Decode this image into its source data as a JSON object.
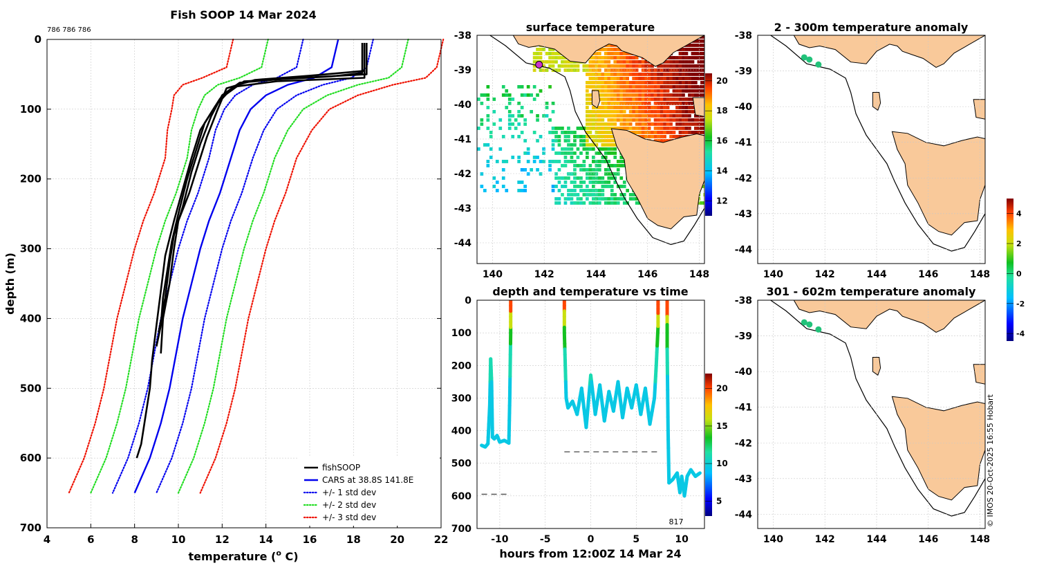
{
  "colors": {
    "land": "#f9c99a",
    "black": "#000000",
    "cars": "#0000ee",
    "std1": "#0000ee",
    "std2": "#22dd22",
    "std3": "#ee1100",
    "anom_dot": "#22c27a",
    "dash": "#555555"
  },
  "labels": {
    "serials": "786 786 786",
    "count": "817",
    "credit": "© IMOS 20-Oct-2025 16:55 Hobart"
  },
  "chart_data": [
    {
      "id": "profile",
      "type": "line",
      "title": "Fish SOOP 14 Mar 2024",
      "xlabel": "temperature (",
      "xlabel_sup": "o",
      "xlabel_end": " C)",
      "ylabel": "depth (m)",
      "xlim": [
        4,
        22
      ],
      "ylim": [
        700,
        0
      ],
      "xticks": [
        4,
        6,
        8,
        10,
        12,
        14,
        16,
        18,
        20,
        22
      ],
      "yticks": [
        0,
        100,
        200,
        300,
        400,
        500,
        600,
        700
      ],
      "grid": true,
      "legend_position": "bottom-right",
      "legend": [
        {
          "label": "fishSOOP",
          "style": "solid",
          "color": "black"
        },
        {
          "label": "CARS at 38.8S 141.8E",
          "style": "solid",
          "color": "cars"
        },
        {
          "label": "+/- 1 std dev",
          "style": "dotted",
          "color": "std1"
        },
        {
          "label": "+/- 2 std dev",
          "style": "dotted",
          "color": "std2"
        },
        {
          "label": "+/- 3 std dev",
          "style": "dotted",
          "color": "std3"
        }
      ],
      "depths": [
        0,
        40,
        55,
        65,
        80,
        100,
        130,
        170,
        220,
        260,
        300,
        350,
        400,
        450,
        500,
        550,
        600,
        650
      ],
      "cars_mean": [
        17.3,
        17.0,
        16.2,
        15.0,
        14.0,
        13.3,
        12.8,
        12.4,
        11.9,
        11.4,
        11.0,
        10.6,
        10.2,
        9.9,
        9.6,
        9.2,
        8.7,
        8.0
      ],
      "sd": [
        1.6,
        1.6,
        1.7,
        1.6,
        1.4,
        1.2,
        1.1,
        1.0,
        1.0,
        1.0,
        1.0,
        1.0,
        1.0,
        1.0,
        1.0,
        1.0,
        1.0,
        1.0
      ],
      "fish_profiles": [
        {
          "t": [
            18.5,
            18.5,
            16.0,
            13.5,
            12.2,
            11.8,
            11.3,
            10.9,
            10.5,
            10.0,
            9.8,
            9.6,
            9.3,
            9.2
          ],
          "d": [
            5,
            45,
            52,
            58,
            70,
            100,
            140,
            180,
            220,
            260,
            300,
            350,
            400,
            450
          ]
        },
        {
          "t": [
            18.6,
            18.6,
            15.0,
            12.8,
            12.0,
            11.5,
            11.0,
            10.6,
            10.2,
            9.8,
            9.6,
            9.4,
            9.1
          ],
          "d": [
            5,
            50,
            56,
            62,
            80,
            110,
            150,
            190,
            240,
            280,
            320,
            370,
            420
          ]
        },
        {
          "t": [
            18.4,
            18.4,
            17.0,
            13.0,
            11.9,
            11.2,
            10.8,
            10.4,
            10.0,
            9.7,
            9.5,
            9.3,
            9.2,
            9.0
          ],
          "d": [
            5,
            48,
            53,
            60,
            85,
            120,
            160,
            200,
            250,
            290,
            330,
            370,
            410,
            440
          ]
        },
        {
          "t": [
            18.5,
            18.5,
            14.5,
            12.5,
            11.7,
            11.0,
            10.6,
            10.2,
            9.8,
            9.4,
            9.2,
            9.0,
            8.8,
            8.7,
            8.5,
            8.3,
            8.1
          ],
          "d": [
            5,
            55,
            60,
            68,
            95,
            130,
            170,
            215,
            260,
            310,
            360,
            410,
            460,
            500,
            540,
            580,
            600
          ]
        }
      ]
    },
    {
      "id": "sst",
      "type": "heatmap",
      "title": "surface temperature",
      "xticks": [
        140,
        142,
        144,
        146,
        148
      ],
      "yticks": [
        -38,
        -39,
        -40,
        -41,
        -42,
        -43,
        -44
      ],
      "xlim": [
        139.4,
        148.2
      ],
      "ylim": [
        -44.6,
        -38
      ],
      "colorbar": {
        "ticks": [
          12,
          14,
          16,
          18,
          20
        ],
        "range": [
          11,
          20.5
        ]
      }
    },
    {
      "id": "timeseries",
      "type": "line",
      "title": "depth and temperature vs time",
      "xlabel": "hours from 12:00Z 14 Mar 24",
      "xticks": [
        -10,
        -5,
        0,
        5,
        10
      ],
      "xtick_labels": [
        "-10",
        "-5",
        "0",
        "5",
        "10"
      ],
      "yticks": [
        0,
        100,
        200,
        300,
        400,
        500,
        600,
        700
      ],
      "xlim": [
        -12.5,
        12.5
      ],
      "ylim": [
        700,
        0
      ],
      "colorbar": {
        "ticks": [
          5,
          10,
          15,
          20
        ],
        "range": [
          3,
          22
        ]
      },
      "segments": [
        {
          "x": [
            -12.0,
            -11.6,
            -11.3,
            -11.1,
            -11.0,
            -10.9,
            -10.8,
            -10.6,
            -10.3,
            -10.0,
            -9.5,
            -9.0,
            -8.9,
            -8.8,
            -8.8
          ],
          "y": [
            445,
            450,
            440,
            320,
            180,
            250,
            420,
            425,
            415,
            435,
            430,
            438,
            300,
            100,
            0
          ]
        },
        {
          "x": [
            -2.9,
            -2.9,
            -2.8,
            -2.7,
            -2.5,
            -2.0,
            -1.5,
            -1.0,
            -0.5,
            0.0,
            0.5,
            1.0,
            1.5,
            2.0,
            2.5,
            3.0,
            3.5,
            4.0,
            4.5,
            5.0,
            5.5,
            6.0,
            6.5,
            7.0,
            7.2,
            7.4,
            7.4
          ],
          "y": [
            0,
            100,
            200,
            300,
            330,
            310,
            350,
            270,
            390,
            230,
            350,
            260,
            370,
            280,
            340,
            250,
            360,
            270,
            330,
            260,
            350,
            270,
            380,
            300,
            200,
            80,
            0
          ]
        },
        {
          "x": [
            8.4,
            8.4,
            8.5,
            8.6,
            9.0,
            9.5,
            9.8,
            10.0,
            10.3,
            10.6,
            11.0,
            11.5,
            12.0
          ],
          "y": [
            0,
            150,
            400,
            560,
            550,
            530,
            590,
            540,
            600,
            540,
            520,
            540,
            530
          ]
        }
      ],
      "dashes": [
        {
          "x": [
            -12.0,
            -8.8
          ],
          "y": 595
        },
        {
          "x": [
            -2.9,
            7.4
          ],
          "y": 465
        }
      ]
    },
    {
      "id": "anom1",
      "type": "scatter",
      "title": "2 - 300m temperature anomaly",
      "xticks": [
        140,
        142,
        144,
        146,
        148
      ],
      "yticks": [
        -38,
        -39,
        -40,
        -41,
        -42,
        -43,
        -44
      ],
      "xlim": [
        139.4,
        148.2
      ],
      "ylim": [
        -44.4,
        -38
      ],
      "points": [
        [
          141.2,
          -38.62
        ],
        [
          141.4,
          -38.68
        ],
        [
          141.75,
          -38.82
        ]
      ]
    },
    {
      "id": "anom2",
      "type": "scatter",
      "title": "301 - 602m temperature anomaly",
      "xticks": [
        140,
        142,
        144,
        146,
        148
      ],
      "yticks": [
        -38,
        -39,
        -40,
        -41,
        -42,
        -43,
        -44
      ],
      "xlim": [
        139.4,
        148.2
      ],
      "ylim": [
        -44.4,
        -38
      ],
      "points": [
        [
          141.2,
          -38.62
        ],
        [
          141.4,
          -38.68
        ],
        [
          141.75,
          -38.82
        ]
      ],
      "colorbar": {
        "ticks": [
          -4,
          -2,
          0,
          2,
          4
        ],
        "range": [
          -4.5,
          5
        ]
      }
    }
  ]
}
